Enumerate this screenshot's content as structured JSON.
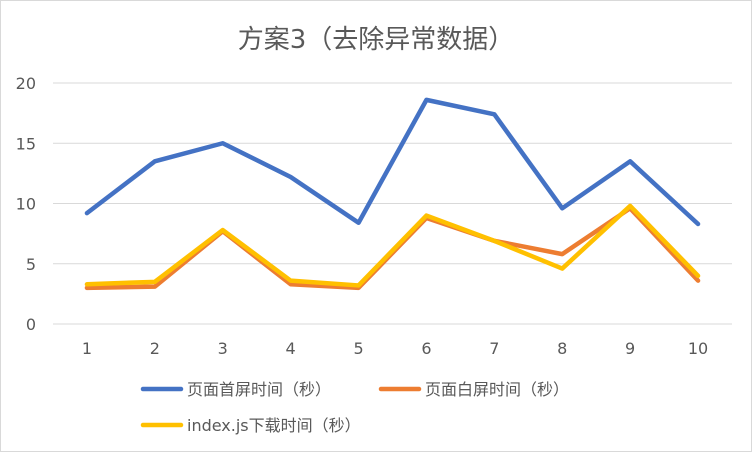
{
  "chart_data": {
    "type": "line",
    "title": "方案3（去除异常数据）",
    "xlabel": "",
    "ylabel": "",
    "categories": [
      "1",
      "2",
      "3",
      "4",
      "5",
      "6",
      "7",
      "8",
      "9",
      "10"
    ],
    "ylim": [
      0,
      20
    ],
    "yticks": [
      "0",
      "5",
      "10",
      "15",
      "20"
    ],
    "grid": true,
    "legend_position": "bottom",
    "series": [
      {
        "name": "页面首屏时间（秒）",
        "color": "#4472C4",
        "values": [
          9.2,
          13.5,
          15.0,
          12.2,
          8.4,
          18.6,
          17.4,
          9.6,
          13.5,
          8.3
        ]
      },
      {
        "name": "页面白屏时间（秒）",
        "color": "#ED7D31",
        "values": [
          3.0,
          3.1,
          7.7,
          3.3,
          3.0,
          8.8,
          6.9,
          5.8,
          9.6,
          3.6
        ]
      },
      {
        "name": "index.js下载时间（秒）",
        "color": "#FFC000",
        "values": [
          3.3,
          3.5,
          7.8,
          3.6,
          3.2,
          9.0,
          6.9,
          4.6,
          9.8,
          4.0
        ]
      }
    ]
  }
}
